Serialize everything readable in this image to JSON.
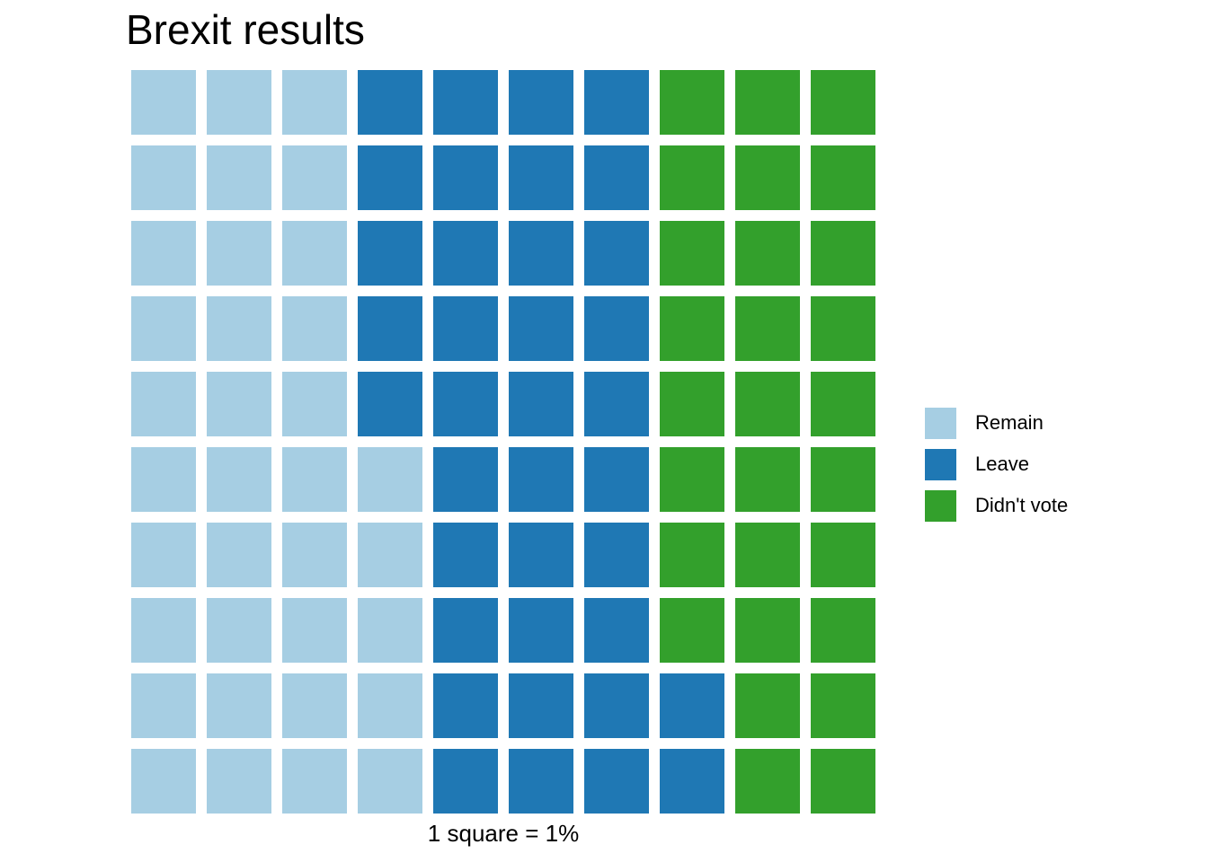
{
  "chart_data": {
    "type": "waffle",
    "title": "Brexit results",
    "caption": "1 square = 1%",
    "rows": 10,
    "fill_order": "by column, bottom to top",
    "categories": [
      "Remain",
      "Leave",
      "Didn't vote"
    ],
    "values": [
      35,
      37,
      28
    ],
    "colors": [
      "#a6cee3",
      "#1f78b4",
      "#33a02c"
    ],
    "legend_position": "right"
  }
}
